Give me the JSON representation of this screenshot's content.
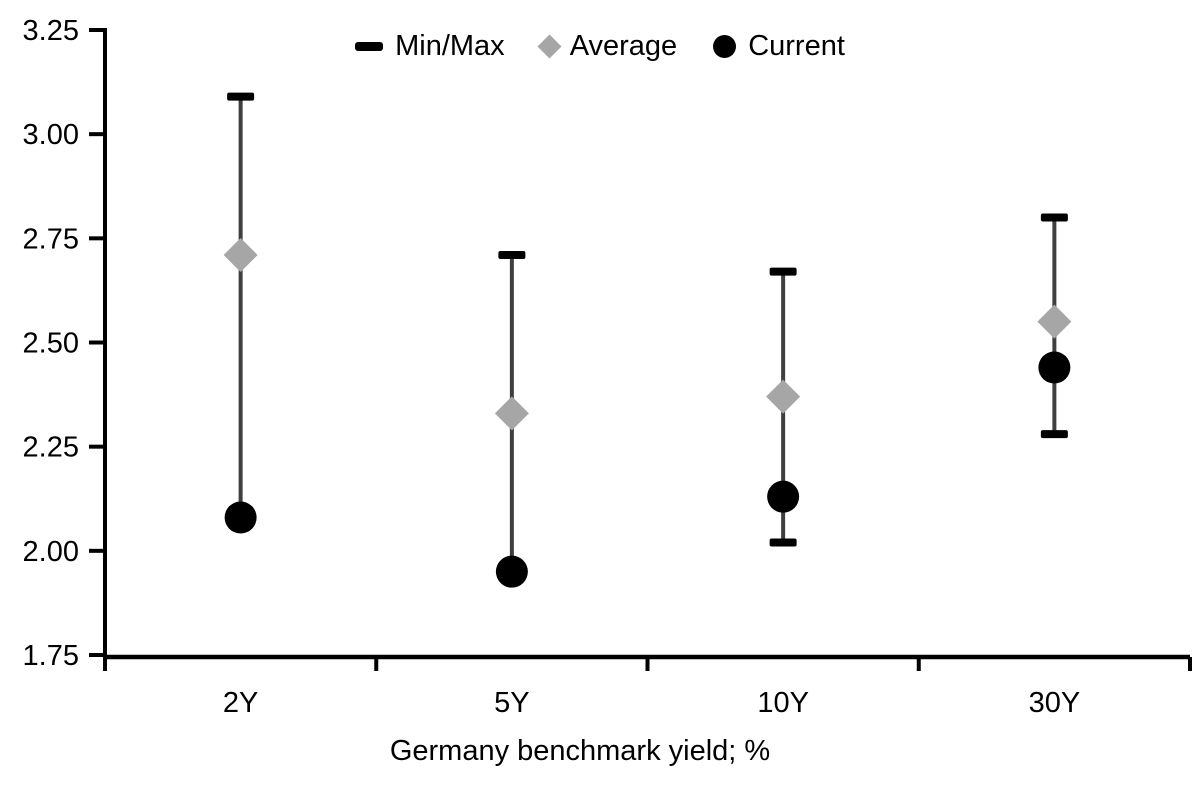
{
  "chart_data": {
    "type": "scatter",
    "subtype": "range-min-max-with-markers",
    "title": "",
    "xlabel": "Germany benchmark yield; %",
    "ylabel": "",
    "categories": [
      "2Y",
      "5Y",
      "10Y",
      "30Y"
    ],
    "series": [
      {
        "name": "Min/Max",
        "marker": "dash",
        "max": [
          3.09,
          2.71,
          2.67,
          2.8
        ],
        "min": [
          2.08,
          1.95,
          2.02,
          2.28
        ]
      },
      {
        "name": "Average",
        "marker": "diamond",
        "values": [
          2.71,
          2.33,
          2.37,
          2.55
        ]
      },
      {
        "name": "Current",
        "marker": "circle",
        "values": [
          2.08,
          1.95,
          2.13,
          2.44
        ]
      }
    ],
    "ylim": [
      1.75,
      3.25
    ],
    "yticks": [
      "3.25",
      "3.00",
      "2.75",
      "2.50",
      "2.25",
      "2.00",
      "1.75"
    ],
    "grid": false,
    "legend_position": "top-center",
    "colors": {
      "range_line": "#3f3f3f",
      "minmax_cap": "#000000",
      "average": "#a6a6a6",
      "current": "#000000",
      "axis": "#000000",
      "text": "#000000",
      "background": "#ffffff"
    }
  }
}
